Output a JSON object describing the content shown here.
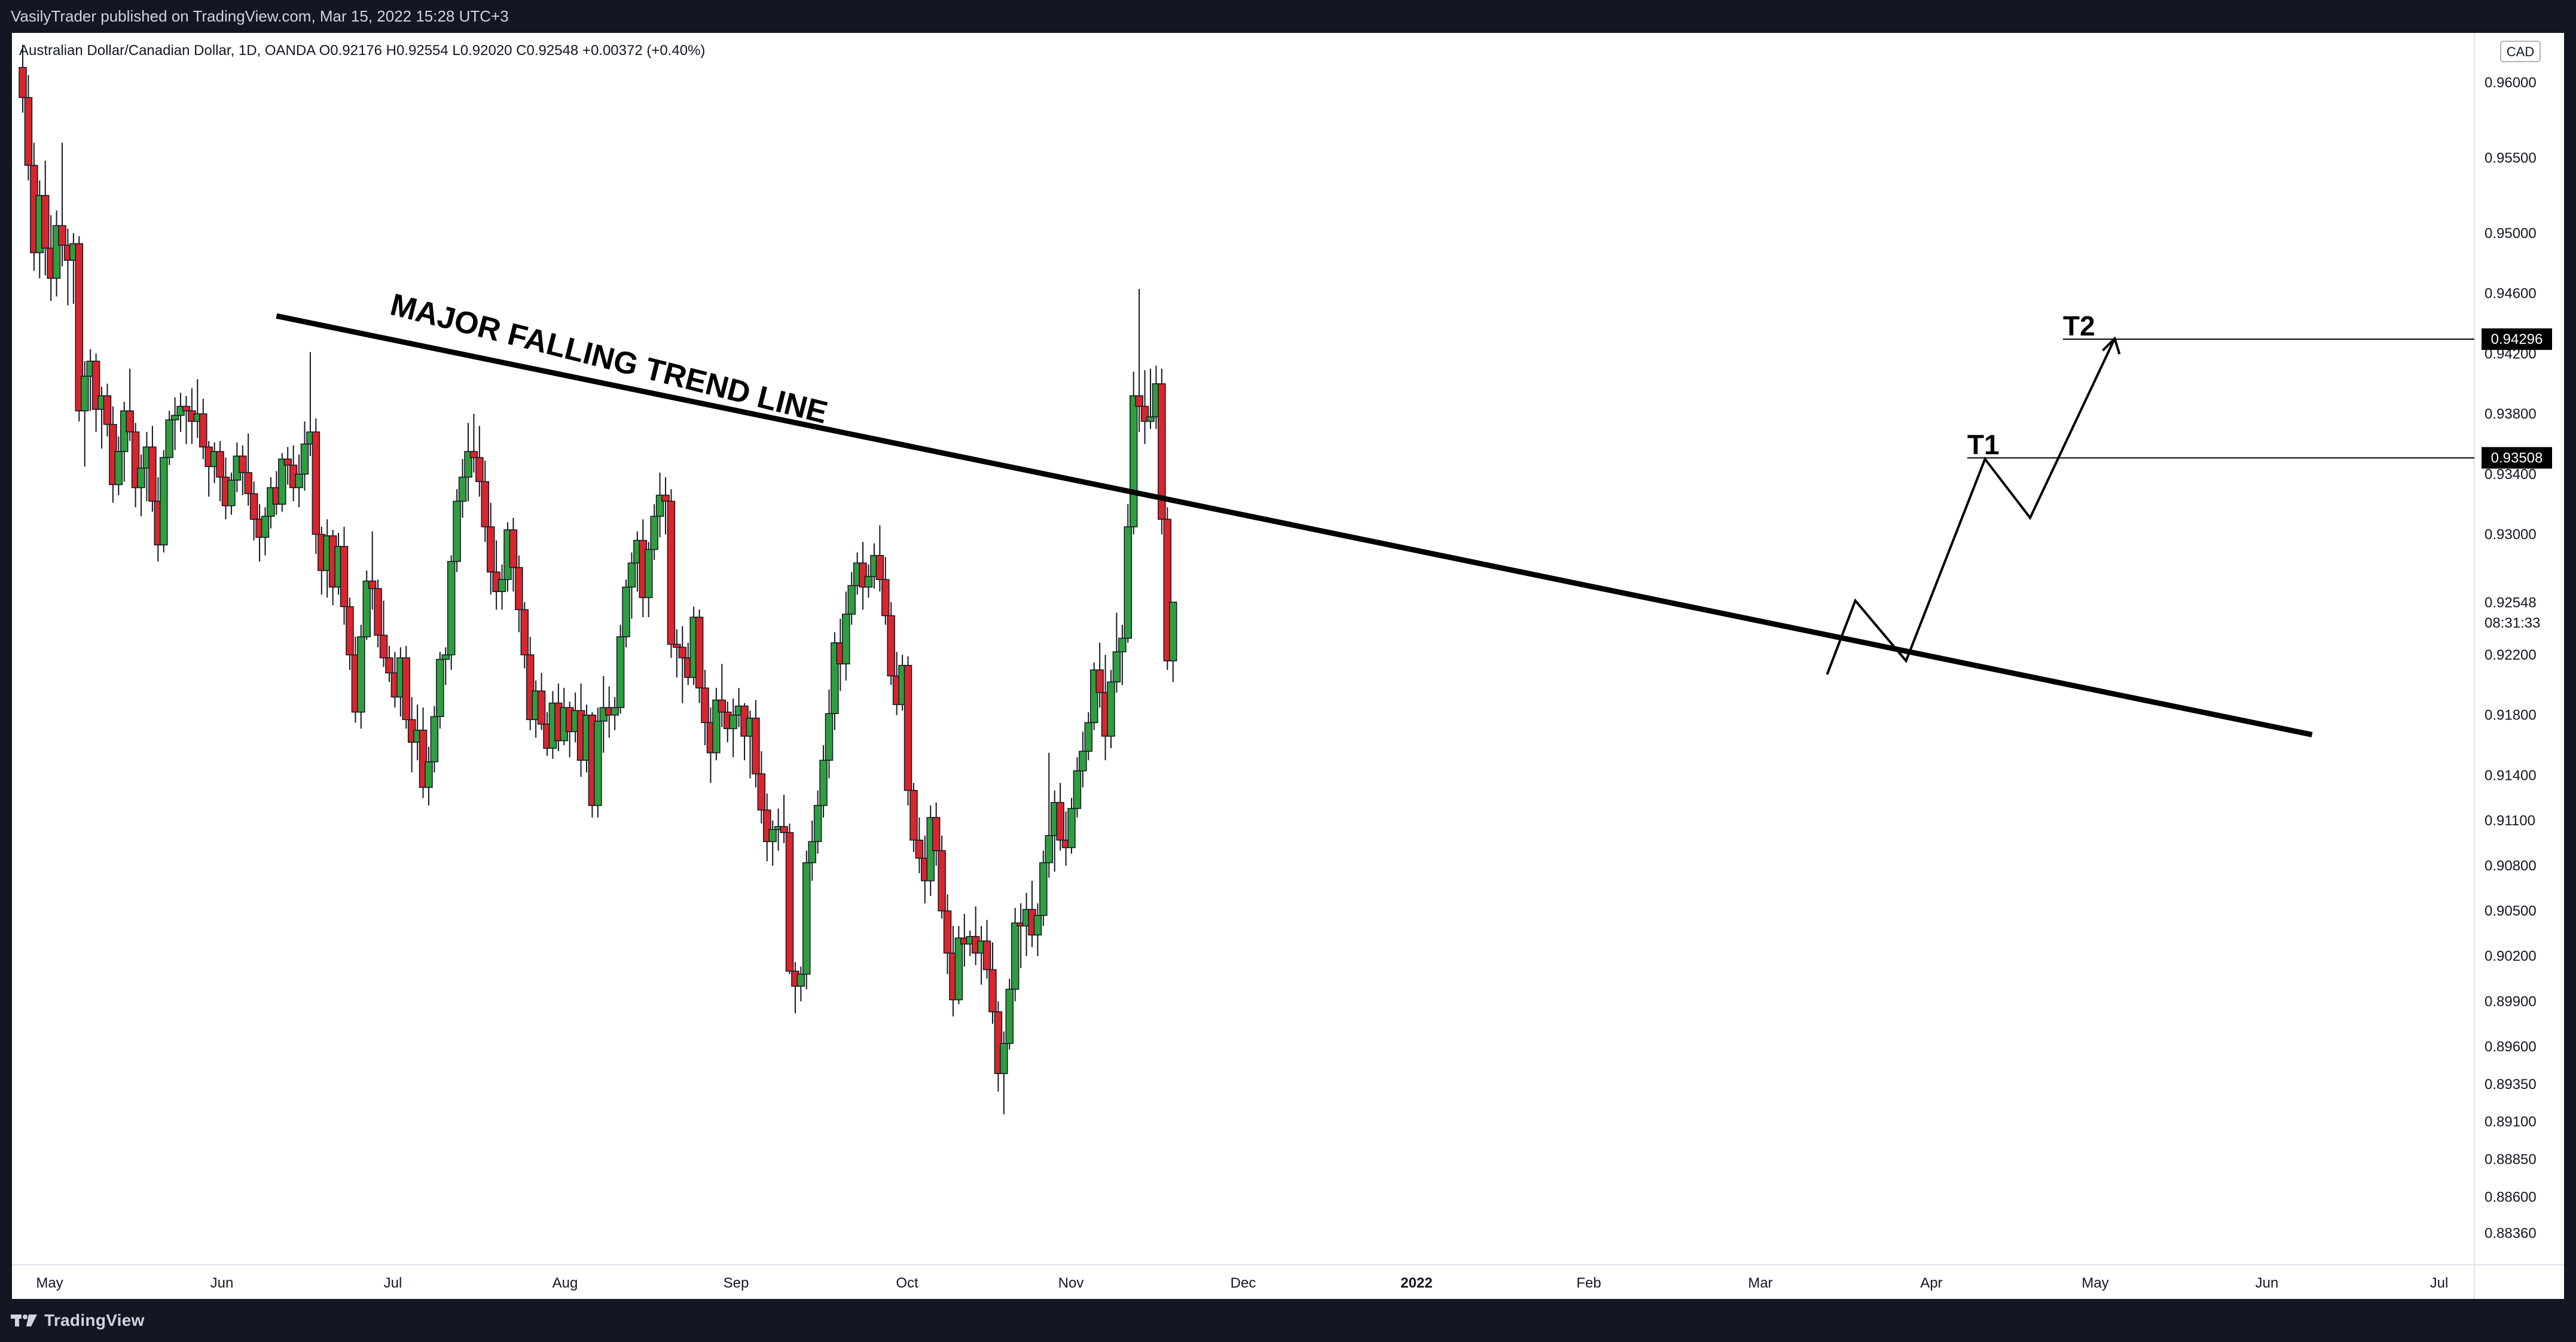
{
  "header": {
    "published_line": "VasilyTrader published on TradingView.com, Mar 15, 2022 15:28 UTC+3"
  },
  "footer": {
    "brand": "TradingView"
  },
  "chart_data": {
    "type": "candlestick",
    "symbol_line": "Australian Dollar/Canadian Dollar, 1D, OANDA  O0.92176  H0.92554  L0.92020  C0.92548  +0.00372 (+0.40%)",
    "currency": "CAD",
    "ylim": [
      0.8815,
      0.9625
    ],
    "y_ticks": [
      "0.96000",
      "0.95500",
      "0.95000",
      "0.94600",
      "0.94200",
      "0.93800",
      "0.93400",
      "0.93000",
      "0.92200",
      "0.91800",
      "0.91400",
      "0.91100",
      "0.90800",
      "0.90500",
      "0.90200",
      "0.89900",
      "0.89600",
      "0.89350",
      "0.89100",
      "0.88850",
      "0.88600",
      "0.88360"
    ],
    "x_labels": [
      "May",
      "Jun",
      "Jul",
      "Aug",
      "Sep",
      "Oct",
      "Nov",
      "Dec",
      "2022",
      "Feb",
      "Mar",
      "Apr",
      "May",
      "Jun",
      "Jul"
    ],
    "price_badges": [
      {
        "label": "0.94296",
        "value": 0.94296,
        "style": "dark"
      },
      {
        "label": "0.93508",
        "value": 0.93508,
        "style": "dark"
      },
      {
        "label": "0.92548",
        "value": 0.92548,
        "style": "plain"
      }
    ],
    "countdown": "08:31:33",
    "trend_line": {
      "label": "MAJOR FALLING TREND LINE",
      "start": {
        "day": 45,
        "price": 0.9445
      },
      "end": {
        "day": 406,
        "price": 0.9167
      }
    },
    "targets": [
      {
        "label": "T1",
        "price": 0.93508
      },
      {
        "label": "T2",
        "price": 0.94296
      }
    ],
    "projection": [
      {
        "day": 320,
        "price": 0.9207
      },
      {
        "day": 325,
        "price": 0.9256
      },
      {
        "day": 334,
        "price": 0.9216
      },
      {
        "day": 348,
        "price": 0.935
      },
      {
        "day": 356,
        "price": 0.9311
      },
      {
        "day": 371,
        "price": 0.943
      }
    ],
    "candles_ohlc": [
      [
        0.961,
        0.9625,
        0.958,
        0.959
      ],
      [
        0.959,
        0.9605,
        0.9535,
        0.9545
      ],
      [
        0.9545,
        0.956,
        0.9475,
        0.9487
      ],
      [
        0.9487,
        0.9535,
        0.947,
        0.9525
      ],
      [
        0.9525,
        0.9548,
        0.9472,
        0.949
      ],
      [
        0.949,
        0.9512,
        0.9455,
        0.947
      ],
      [
        0.947,
        0.9515,
        0.9458,
        0.9505
      ],
      [
        0.9505,
        0.956,
        0.9478,
        0.9492
      ],
      [
        0.9492,
        0.9503,
        0.9452,
        0.9482
      ],
      [
        0.9482,
        0.95,
        0.9453,
        0.9493
      ],
      [
        0.9493,
        0.9498,
        0.9375,
        0.9382
      ],
      [
        0.9382,
        0.9415,
        0.9345,
        0.9405
      ],
      [
        0.9405,
        0.9423,
        0.9382,
        0.9415
      ],
      [
        0.9415,
        0.942,
        0.9368,
        0.9383
      ],
      [
        0.9383,
        0.9398,
        0.9357,
        0.9392
      ],
      [
        0.9392,
        0.94,
        0.9365,
        0.9373
      ],
      [
        0.9373,
        0.9385,
        0.9321,
        0.9333
      ],
      [
        0.9333,
        0.9365,
        0.9326,
        0.9355
      ],
      [
        0.9355,
        0.9388,
        0.9335,
        0.9382
      ],
      [
        0.9382,
        0.941,
        0.9362,
        0.9368
      ],
      [
        0.9368,
        0.9374,
        0.9318,
        0.9331
      ],
      [
        0.9331,
        0.9353,
        0.9312,
        0.9344
      ],
      [
        0.9344,
        0.9368,
        0.9322,
        0.9358
      ],
      [
        0.9358,
        0.9372,
        0.9315,
        0.9322
      ],
      [
        0.9322,
        0.9338,
        0.9282,
        0.9293
      ],
      [
        0.9293,
        0.9356,
        0.9288,
        0.9351
      ],
      [
        0.9351,
        0.9382,
        0.9346,
        0.9376
      ],
      [
        0.9376,
        0.9391,
        0.9356,
        0.9379
      ],
      [
        0.9379,
        0.9394,
        0.9368,
        0.9385
      ],
      [
        0.9385,
        0.9392,
        0.936,
        0.9382
      ],
      [
        0.9382,
        0.9397,
        0.936,
        0.9375
      ],
      [
        0.9375,
        0.9403,
        0.9364,
        0.938
      ],
      [
        0.938,
        0.939,
        0.935,
        0.9358
      ],
      [
        0.9358,
        0.9362,
        0.9325,
        0.9345
      ],
      [
        0.9345,
        0.9361,
        0.9334,
        0.9355
      ],
      [
        0.9355,
        0.9362,
        0.9322,
        0.9338
      ],
      [
        0.9338,
        0.9351,
        0.931,
        0.9319
      ],
      [
        0.9319,
        0.9341,
        0.9313,
        0.9336
      ],
      [
        0.9336,
        0.9361,
        0.9328,
        0.9352
      ],
      [
        0.9352,
        0.9359,
        0.9326,
        0.9341
      ],
      [
        0.9341,
        0.9367,
        0.9319,
        0.9327
      ],
      [
        0.9327,
        0.9335,
        0.9296,
        0.931
      ],
      [
        0.931,
        0.932,
        0.9282,
        0.9298
      ],
      [
        0.9298,
        0.9318,
        0.9286,
        0.9312
      ],
      [
        0.9312,
        0.9338,
        0.9304,
        0.9331
      ],
      [
        0.9331,
        0.9342,
        0.9313,
        0.932
      ],
      [
        0.932,
        0.9354,
        0.9315,
        0.935
      ],
      [
        0.935,
        0.9358,
        0.9333,
        0.9346
      ],
      [
        0.9346,
        0.9359,
        0.9322,
        0.9331
      ],
      [
        0.9331,
        0.9353,
        0.9318,
        0.934
      ],
      [
        0.934,
        0.9375,
        0.9329,
        0.936
      ],
      [
        0.936,
        0.9421,
        0.9352,
        0.9368
      ],
      [
        0.9368,
        0.9377,
        0.9287,
        0.93
      ],
      [
        0.93,
        0.9305,
        0.926,
        0.9276
      ],
      [
        0.9276,
        0.931,
        0.9258,
        0.9299
      ],
      [
        0.9299,
        0.9303,
        0.9253,
        0.9265
      ],
      [
        0.9265,
        0.9301,
        0.926,
        0.9292
      ],
      [
        0.9292,
        0.9305,
        0.924,
        0.9252
      ],
      [
        0.9252,
        0.9258,
        0.921,
        0.922
      ],
      [
        0.922,
        0.9232,
        0.9175,
        0.9182
      ],
      [
        0.9182,
        0.924,
        0.9171,
        0.9232
      ],
      [
        0.9232,
        0.9276,
        0.923,
        0.9269
      ],
      [
        0.9269,
        0.9302,
        0.925,
        0.9264
      ],
      [
        0.9264,
        0.927,
        0.9225,
        0.9233
      ],
      [
        0.9233,
        0.9256,
        0.9212,
        0.9218
      ],
      [
        0.9218,
        0.9226,
        0.9202,
        0.9208
      ],
      [
        0.9208,
        0.9222,
        0.9185,
        0.9192
      ],
      [
        0.9192,
        0.9225,
        0.9179,
        0.9218
      ],
      [
        0.9218,
        0.9226,
        0.9171,
        0.9177
      ],
      [
        0.9177,
        0.9192,
        0.9142,
        0.9162
      ],
      [
        0.9162,
        0.9187,
        0.915,
        0.917
      ],
      [
        0.917,
        0.9185,
        0.9125,
        0.9132
      ],
      [
        0.9132,
        0.9159,
        0.912,
        0.9149
      ],
      [
        0.9149,
        0.9186,
        0.9142,
        0.9179
      ],
      [
        0.9179,
        0.9222,
        0.9171,
        0.9217
      ],
      [
        0.9217,
        0.9225,
        0.92,
        0.922
      ],
      [
        0.922,
        0.9286,
        0.921,
        0.9282
      ],
      [
        0.9282,
        0.933,
        0.9275,
        0.9322
      ],
      [
        0.9322,
        0.935,
        0.9311,
        0.9338
      ],
      [
        0.9338,
        0.9374,
        0.9322,
        0.9355
      ],
      [
        0.9355,
        0.938,
        0.9341,
        0.9351
      ],
      [
        0.9351,
        0.9372,
        0.9325,
        0.9335
      ],
      [
        0.9335,
        0.9349,
        0.9295,
        0.9305
      ],
      [
        0.9305,
        0.9321,
        0.926,
        0.9275
      ],
      [
        0.9275,
        0.9296,
        0.925,
        0.9262
      ],
      [
        0.9262,
        0.928,
        0.925,
        0.927
      ],
      [
        0.927,
        0.9308,
        0.9262,
        0.9303
      ],
      [
        0.9303,
        0.9311,
        0.9262,
        0.9278
      ],
      [
        0.9278,
        0.9286,
        0.9235,
        0.925
      ],
      [
        0.925,
        0.9255,
        0.9211,
        0.922
      ],
      [
        0.922,
        0.9232,
        0.917,
        0.9177
      ],
      [
        0.9177,
        0.9203,
        0.9165,
        0.9196
      ],
      [
        0.9196,
        0.9208,
        0.917,
        0.9174
      ],
      [
        0.9174,
        0.9182,
        0.9153,
        0.9158
      ],
      [
        0.9158,
        0.9196,
        0.9151,
        0.9188
      ],
      [
        0.9188,
        0.9201,
        0.9156,
        0.9163
      ],
      [
        0.9163,
        0.9198,
        0.916,
        0.9185
      ],
      [
        0.9185,
        0.9189,
        0.9152,
        0.9169
      ],
      [
        0.9169,
        0.9195,
        0.9162,
        0.9183
      ],
      [
        0.9183,
        0.9201,
        0.9139,
        0.915
      ],
      [
        0.915,
        0.9187,
        0.9142,
        0.918
      ],
      [
        0.918,
        0.9182,
        0.9112,
        0.912
      ],
      [
        0.912,
        0.9185,
        0.9112,
        0.9176
      ],
      [
        0.9176,
        0.9206,
        0.9155,
        0.9185
      ],
      [
        0.9185,
        0.9199,
        0.9165,
        0.918
      ],
      [
        0.918,
        0.9192,
        0.917,
        0.9185
      ],
      [
        0.9185,
        0.924,
        0.9181,
        0.9232
      ],
      [
        0.9232,
        0.927,
        0.9225,
        0.9265
      ],
      [
        0.9265,
        0.9288,
        0.9244,
        0.9281
      ],
      [
        0.9281,
        0.9302,
        0.9262,
        0.9296
      ],
      [
        0.9296,
        0.931,
        0.9245,
        0.9258
      ],
      [
        0.9258,
        0.9295,
        0.9245,
        0.929
      ],
      [
        0.929,
        0.932,
        0.9283,
        0.9312
      ],
      [
        0.9312,
        0.9341,
        0.9298,
        0.9326
      ],
      [
        0.9326,
        0.9338,
        0.93,
        0.9322
      ],
      [
        0.9322,
        0.933,
        0.9218,
        0.9227
      ],
      [
        0.9227,
        0.9237,
        0.9205,
        0.9225
      ],
      [
        0.9225,
        0.9239,
        0.9188,
        0.9218
      ],
      [
        0.9218,
        0.9228,
        0.92,
        0.9205
      ],
      [
        0.9205,
        0.9252,
        0.92,
        0.9245
      ],
      [
        0.9245,
        0.925,
        0.9188,
        0.9198
      ],
      [
        0.9198,
        0.921,
        0.916,
        0.9175
      ],
      [
        0.9175,
        0.9185,
        0.9135,
        0.9155
      ],
      [
        0.9155,
        0.9198,
        0.915,
        0.919
      ],
      [
        0.919,
        0.9214,
        0.9172,
        0.9182
      ],
      [
        0.9182,
        0.9189,
        0.9162,
        0.9171
      ],
      [
        0.9171,
        0.9191,
        0.9152,
        0.918
      ],
      [
        0.918,
        0.9198,
        0.9172,
        0.9186
      ],
      [
        0.9186,
        0.9188,
        0.915,
        0.9166
      ],
      [
        0.9166,
        0.9183,
        0.9138,
        0.9178
      ],
      [
        0.9178,
        0.919,
        0.9132,
        0.9141
      ],
      [
        0.9141,
        0.9156,
        0.9108,
        0.9117
      ],
      [
        0.9117,
        0.9128,
        0.9083,
        0.9096
      ],
      [
        0.9096,
        0.911,
        0.908,
        0.9104
      ],
      [
        0.9104,
        0.9118,
        0.909,
        0.9106
      ],
      [
        0.9106,
        0.9127,
        0.9095,
        0.9102
      ],
      [
        0.9102,
        0.9108,
        0.9008,
        0.901
      ],
      [
        0.901,
        0.9016,
        0.8982,
        0.9
      ],
      [
        0.9,
        0.9013,
        0.899,
        0.9008
      ],
      [
        0.9008,
        0.909,
        0.8998,
        0.9082
      ],
      [
        0.9082,
        0.911,
        0.907,
        0.9096
      ],
      [
        0.9096,
        0.913,
        0.9088,
        0.912
      ],
      [
        0.912,
        0.916,
        0.9112,
        0.915
      ],
      [
        0.915,
        0.9197,
        0.9138,
        0.9181
      ],
      [
        0.9181,
        0.9235,
        0.917,
        0.9228
      ],
      [
        0.9228,
        0.9244,
        0.9196,
        0.9214
      ],
      [
        0.9214,
        0.9262,
        0.9203,
        0.9247
      ],
      [
        0.9247,
        0.9275,
        0.924,
        0.9266
      ],
      [
        0.9266,
        0.9288,
        0.926,
        0.9281
      ],
      [
        0.9281,
        0.9295,
        0.925,
        0.9265
      ],
      [
        0.9265,
        0.928,
        0.9258,
        0.9272
      ],
      [
        0.9272,
        0.9294,
        0.9264,
        0.9286
      ],
      [
        0.9286,
        0.9306,
        0.9262,
        0.927
      ],
      [
        0.927,
        0.9285,
        0.924,
        0.9246
      ],
      [
        0.9246,
        0.9255,
        0.92,
        0.9206
      ],
      [
        0.9206,
        0.9222,
        0.918,
        0.9187
      ],
      [
        0.9187,
        0.922,
        0.9183,
        0.9213
      ],
      [
        0.9213,
        0.9219,
        0.912,
        0.913
      ],
      [
        0.913,
        0.9135,
        0.9089,
        0.9097
      ],
      [
        0.9097,
        0.9112,
        0.9075,
        0.9085
      ],
      [
        0.9085,
        0.91,
        0.9055,
        0.907
      ],
      [
        0.907,
        0.912,
        0.906,
        0.9112
      ],
      [
        0.9112,
        0.9122,
        0.908,
        0.909
      ],
      [
        0.909,
        0.91,
        0.9045,
        0.905
      ],
      [
        0.905,
        0.9061,
        0.9008,
        0.9022
      ],
      [
        0.9022,
        0.904,
        0.898,
        0.8991
      ],
      [
        0.8991,
        0.904,
        0.8988,
        0.9032
      ],
      [
        0.9032,
        0.9048,
        0.9013,
        0.9028
      ],
      [
        0.9028,
        0.9037,
        0.902,
        0.9033
      ],
      [
        0.9033,
        0.9053,
        0.9014,
        0.9022
      ],
      [
        0.9022,
        0.904,
        0.9001,
        0.903
      ],
      [
        0.903,
        0.9044,
        0.9005,
        0.9011
      ],
      [
        0.9011,
        0.9029,
        0.8975,
        0.8983
      ],
      [
        0.8983,
        0.899,
        0.893,
        0.8942
      ],
      [
        0.8942,
        0.897,
        0.8915,
        0.8962
      ],
      [
        0.8962,
        0.9005,
        0.8958,
        0.8998
      ],
      [
        0.8998,
        0.9052,
        0.899,
        0.9042
      ],
      [
        0.9042,
        0.9055,
        0.9012,
        0.904
      ],
      [
        0.904,
        0.9062,
        0.902,
        0.9051
      ],
      [
        0.9051,
        0.907,
        0.9026,
        0.9034
      ],
      [
        0.9034,
        0.9055,
        0.902,
        0.9047
      ],
      [
        0.9047,
        0.909,
        0.904,
        0.9082
      ],
      [
        0.9082,
        0.9155,
        0.9072,
        0.91
      ],
      [
        0.91,
        0.913,
        0.9076,
        0.9122
      ],
      [
        0.9122,
        0.9135,
        0.909,
        0.9097
      ],
      [
        0.9097,
        0.9116,
        0.908,
        0.9092
      ],
      [
        0.9092,
        0.9125,
        0.9088,
        0.9118
      ],
      [
        0.9118,
        0.9152,
        0.9112,
        0.9143
      ],
      [
        0.9143,
        0.9169,
        0.9132,
        0.9156
      ],
      [
        0.9156,
        0.9182,
        0.915,
        0.9175
      ],
      [
        0.9175,
        0.9215,
        0.917,
        0.921
      ],
      [
        0.921,
        0.9228,
        0.9185,
        0.9195
      ],
      [
        0.9195,
        0.922,
        0.915,
        0.9166
      ],
      [
        0.9166,
        0.921,
        0.9158,
        0.9202
      ],
      [
        0.9202,
        0.9248,
        0.9195,
        0.9222
      ],
      [
        0.9222,
        0.924,
        0.92,
        0.9231
      ],
      [
        0.9231,
        0.932,
        0.9228,
        0.9305
      ],
      [
        0.9305,
        0.9408,
        0.93,
        0.9392
      ],
      [
        0.9392,
        0.9463,
        0.9368,
        0.9385
      ],
      [
        0.9385,
        0.9409,
        0.936,
        0.9375
      ],
      [
        0.9375,
        0.941,
        0.937,
        0.9378
      ],
      [
        0.9378,
        0.9412,
        0.937,
        0.94
      ],
      [
        0.94,
        0.941,
        0.93,
        0.931
      ],
      [
        0.931,
        0.9318,
        0.921,
        0.9216
      ],
      [
        0.9216,
        0.9255,
        0.9202,
        0.9255
      ]
    ]
  }
}
